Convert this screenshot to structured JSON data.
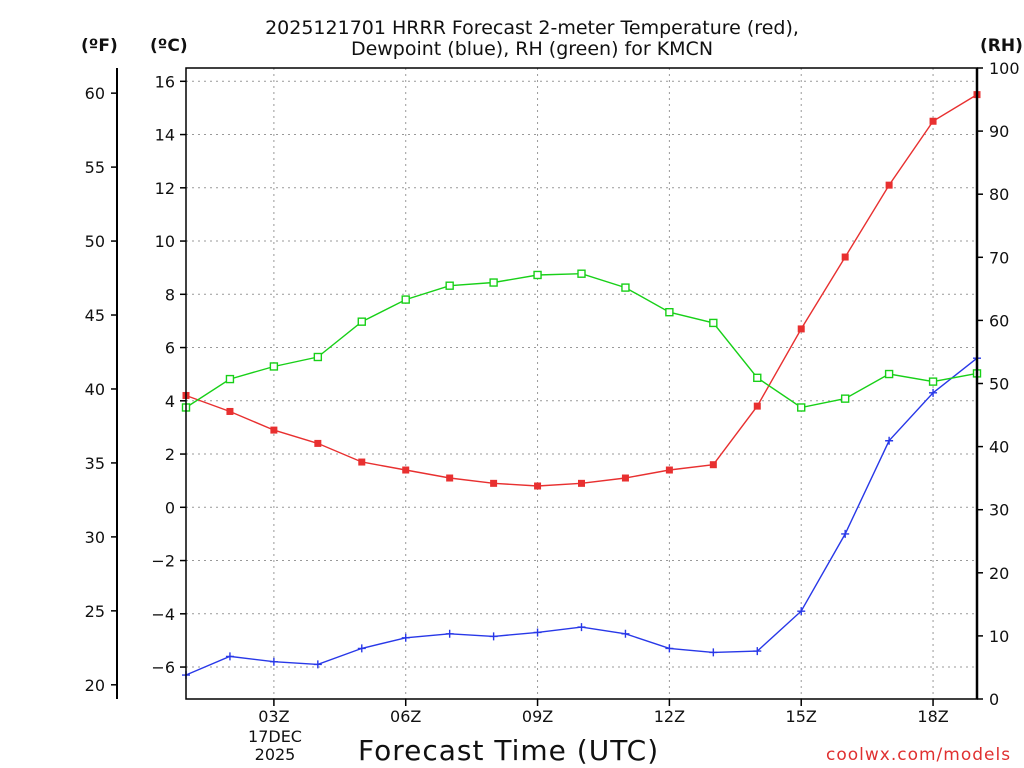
{
  "chart_data": {
    "type": "line",
    "title_line1": "2025121701 HRRR Forecast 2-meter Temperature (red),",
    "title_line2": "Dewpoint (blue), RH (green) for KMCN",
    "xlabel": "Forecast Time (UTC)",
    "units": {
      "fahrenheit": "(ºF)",
      "celsius": "(ºC)",
      "rh": "(RH)"
    },
    "date_label": [
      "17DEC",
      "2025"
    ],
    "credit": "coolwx.com/models",
    "x_hours": [
      1,
      2,
      3,
      4,
      5,
      6,
      7,
      8,
      9,
      10,
      11,
      12,
      13,
      14,
      15,
      16,
      17,
      18,
      19
    ],
    "xlim": [
      1,
      19
    ],
    "x_ticks": [
      {
        "hour": 3,
        "label": "03Z"
      },
      {
        "hour": 6,
        "label": "06Z"
      },
      {
        "hour": 9,
        "label": "09Z"
      },
      {
        "hour": 12,
        "label": "12Z"
      },
      {
        "hour": 15,
        "label": "15Z"
      },
      {
        "hour": 18,
        "label": "18Z"
      }
    ],
    "ylim_celsius": [
      -7.2,
      16.5
    ],
    "celsius_ticks": [
      "-6",
      "-4",
      "-2",
      "0",
      "2",
      "4",
      "6",
      "8",
      "10",
      "12",
      "14",
      "16"
    ],
    "fahrenheit_ticks": [
      "20",
      "25",
      "30",
      "35",
      "40",
      "45",
      "50",
      "55",
      "60"
    ],
    "rh_ticks": [
      "0",
      "10",
      "20",
      "30",
      "40",
      "50",
      "60",
      "70",
      "80",
      "90",
      "100"
    ],
    "series": [
      {
        "name": "Temperature",
        "color": "#e83030",
        "marker": "filled-square",
        "values": [
          4.2,
          3.6,
          2.9,
          2.4,
          1.7,
          1.4,
          1.1,
          0.9,
          0.8,
          0.9,
          1.1,
          1.4,
          1.6,
          3.8,
          6.7,
          9.4,
          12.1,
          14.5,
          15.5
        ]
      },
      {
        "name": "Dewpoint",
        "color": "#2838e8",
        "marker": "plus",
        "values": [
          -6.3,
          -5.6,
          -5.8,
          -5.9,
          -5.3,
          -4.9,
          -4.75,
          -4.85,
          -4.7,
          -4.5,
          -4.75,
          -5.3,
          -5.45,
          -5.4,
          -3.9,
          -1.0,
          2.5,
          4.3,
          5.6
        ]
      },
      {
        "name": "RH",
        "color": "#18d018",
        "marker": "open-square",
        "axis": "rh",
        "values": [
          46.2,
          50.7,
          52.7,
          54.2,
          59.8,
          63.3,
          65.5,
          66.0,
          67.2,
          67.4,
          65.2,
          61.3,
          59.6,
          50.9,
          46.2,
          47.6,
          51.5,
          50.3,
          51.6
        ]
      }
    ]
  }
}
